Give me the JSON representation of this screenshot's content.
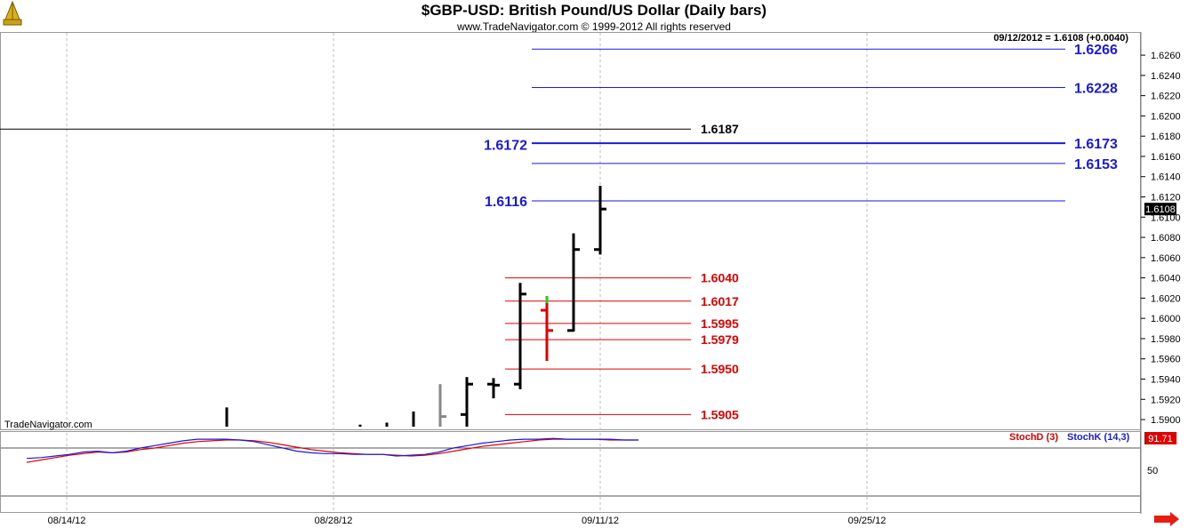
{
  "header": {
    "title": "$GBP-USD:  British Pound/US Dollar  (Daily bars)",
    "subtitle": "www.TradeNavigator.com © 1999-2012 All rights reserved",
    "quote": "09/12/2012 = 1.6108 (+0.0040)"
  },
  "watermark": "TradeNavigator.com",
  "colors": {
    "blue": "#1a1adb",
    "red": "#e00000",
    "black": "#000000",
    "gray": "#888888",
    "green": "#22cc22",
    "panel_bg": "#efefef",
    "arrow": "#e81c10"
  },
  "chart_data": {
    "type": "ohlc",
    "instrument": "$GBP-USD",
    "y_axis": {
      "ylim": [
        1.5893,
        1.6275
      ],
      "ticks": [
        "1.6260",
        "1.6240",
        "1.6220",
        "1.6200",
        "1.6180",
        "1.6160",
        "1.6140",
        "1.6120",
        "1.6100",
        "1.6080",
        "1.6060",
        "1.6040",
        "1.6020",
        "1.6000",
        "1.5980",
        "1.5960",
        "1.5940",
        "1.5920",
        "1.5900"
      ],
      "last_price_tag": "1.6108"
    },
    "x_axis": {
      "tick_labels": [
        "08/14/12",
        "08/28/12",
        "09/11/12",
        "09/25/12"
      ]
    },
    "bars": [
      {
        "date": "08/22/12",
        "high": 1.5912,
        "low": 1.5893,
        "color": "black"
      },
      {
        "date": "08/29/12",
        "high": 1.5895,
        "low": 1.5893,
        "color": "black"
      },
      {
        "date": "08/30/12",
        "high": 1.5897,
        "low": 1.5893,
        "color": "black"
      },
      {
        "date": "08/31/12",
        "high": 1.5908,
        "low": 1.5893,
        "color": "black"
      },
      {
        "date": "09/03/12",
        "high": 1.5935,
        "low": 1.5893,
        "close": 1.5903,
        "color": "gray"
      },
      {
        "date": "09/04/12",
        "high": 1.5942,
        "low": 1.5893,
        "open": 1.5905,
        "close": 1.5935,
        "color": "black"
      },
      {
        "date": "09/05/12",
        "high": 1.5941,
        "low": 1.5921,
        "open": 1.5935,
        "close": 1.5934,
        "color": "black"
      },
      {
        "date": "09/06/12",
        "high": 1.6035,
        "low": 1.593,
        "open": 1.5935,
        "close": 1.6024,
        "color": "black"
      },
      {
        "date": "09/07/12",
        "high": 1.6022,
        "low": 1.5958,
        "open": 1.6008,
        "close": 1.5988,
        "color": "red",
        "high_tick_color": "green"
      },
      {
        "date": "09/10/12",
        "high": 1.6084,
        "low": 1.5987,
        "open": 1.5988,
        "close": 1.6068,
        "color": "black"
      },
      {
        "date": "09/11/12",
        "high": 1.6131,
        "low": 1.6063,
        "open": 1.6068,
        "close": 1.6108,
        "color": "black"
      }
    ],
    "lines": [
      {
        "value": 1.6266,
        "label": "1.6266",
        "color": "blue",
        "label_side": "right"
      },
      {
        "value": 1.6228,
        "label": "1.6228",
        "color": "blue",
        "label_side": "right"
      },
      {
        "value": 1.6187,
        "label": "1.6187",
        "color": "black",
        "label_side": "right"
      },
      {
        "value": 1.6173,
        "label": "1.6173",
        "color": "blue",
        "label_side": "right"
      },
      {
        "value": 1.6172,
        "label": "1.6172",
        "color": "blue",
        "label_side": "left"
      },
      {
        "value": 1.6153,
        "label": "1.6153",
        "color": "blue",
        "label_side": "right"
      },
      {
        "value": 1.6116,
        "label": "1.6116",
        "color": "blue",
        "label_side": "left"
      },
      {
        "value": 1.604,
        "label": "1.6040",
        "color": "red",
        "label_side": "right"
      },
      {
        "value": 1.6017,
        "label": "1.6017",
        "color": "red",
        "label_side": "right"
      },
      {
        "value": 1.5995,
        "label": "1.5995",
        "color": "red",
        "label_side": "right"
      },
      {
        "value": 1.5979,
        "label": "1.5979",
        "color": "red",
        "label_side": "right"
      },
      {
        "value": 1.595,
        "label": "1.5950",
        "color": "red",
        "label_side": "right"
      },
      {
        "value": 1.5905,
        "label": "1.5905",
        "color": "red",
        "label_side": "right"
      }
    ],
    "stochastic": {
      "ylim": [
        0,
        100
      ],
      "tick_label": "50",
      "legend": [
        "StochD (3)",
        "StochK (14,3)"
      ],
      "last_value_tag": "91.71",
      "stoch_d": [
        62,
        65,
        68,
        71,
        73,
        75,
        74,
        75,
        78,
        80,
        83,
        86,
        88,
        89,
        90,
        90,
        89,
        87,
        84,
        81,
        78,
        76,
        74,
        73,
        72,
        72,
        71,
        70,
        71,
        73,
        76,
        79,
        82,
        84,
        86,
        88,
        90,
        91,
        91,
        91,
        91,
        90,
        90,
        90
      ],
      "stoch_k": [
        67,
        68,
        70,
        72,
        75,
        76,
        74,
        76,
        80,
        83,
        86,
        89,
        91,
        91,
        91,
        90,
        88,
        84,
        80,
        76,
        74,
        73,
        73,
        72,
        72,
        72,
        70,
        71,
        72,
        75,
        80,
        83,
        86,
        88,
        90,
        91,
        91,
        92,
        91,
        91,
        91,
        91,
        90,
        90
      ]
    }
  }
}
